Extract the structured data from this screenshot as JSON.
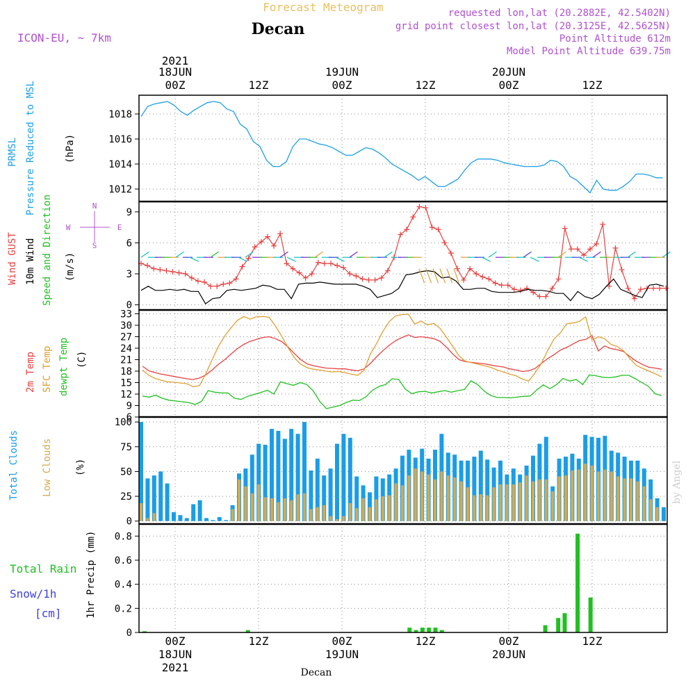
{
  "header": {
    "title": "Forecast Meteogram",
    "location": "Decan",
    "model": "ICON-EU, ~ 7km",
    "requested": "requested lon,lat (20.2882E, 42.5402N)",
    "gridpoint": "grid point closest lon,lat (20.3125E, 42.5625N)",
    "point_alt": "Point Altitude 612m",
    "model_alt": "Model Point Altitude 639.75m",
    "watermark": "by Angel",
    "footer_label": "Decan"
  },
  "time_axis": {
    "top_year": "2021",
    "bottom_year": "2021",
    "day_labels": [
      "18JUN",
      "19JUN",
      "20JUN"
    ],
    "tick_labels": [
      "00Z",
      "12Z",
      "00Z",
      "12Z",
      "00Z",
      "12Z"
    ]
  },
  "chart_data": [
    {
      "type": "line",
      "ylabel_lines": [
        "PRMSL",
        "Pressure Reduced to MSL"
      ],
      "unit": "(hPa)",
      "ylim": [
        1011,
        1019.5
      ],
      "yticks": [
        1012,
        1014,
        1016,
        1018
      ],
      "series": [
        {
          "values": [
            1017.8,
            1018.6,
            1018.8,
            1018.9,
            1019.0,
            1018.7,
            1018.2,
            1017.9,
            1018.3,
            1018.6,
            1018.9,
            1019.0,
            1018.9,
            1018.4,
            1018.2,
            1017.2,
            1016.8,
            1015.8,
            1015.4,
            1014.3,
            1013.8,
            1013.8,
            1014.2,
            1015.4,
            1016.0,
            1016.0,
            1015.8,
            1015.6,
            1015.5,
            1015.3,
            1015.0,
            1014.7,
            1014.7,
            1015.0,
            1015.3,
            1015.2,
            1014.9,
            1014.5,
            1014.0,
            1013.7,
            1013.4,
            1013.1,
            1012.7,
            1013.0,
            1012.6,
            1012.2,
            1012.2,
            1012.5,
            1012.8,
            1013.5,
            1014.1,
            1014.4,
            1014.4,
            1014.4,
            1014.3,
            1014.1,
            1014.0,
            1013.9,
            1013.8,
            1013.8,
            1013.8,
            1013.9,
            1014.3,
            1014.2,
            1013.8,
            1013.0,
            1012.7,
            1012.2,
            1011.7,
            1012.7,
            1012.0,
            1011.9,
            1011.9,
            1012.2,
            1012.6,
            1013.2,
            1013.2,
            1013.1,
            1012.9,
            1012.9
          ]
        }
      ]
    },
    {
      "type": "line",
      "ylabel_lines": [
        "Wind GUST",
        "10m Wind",
        "Speed and Direction"
      ],
      "unit": "(m/s)",
      "compass": {
        "n": "N",
        "s": "S",
        "w": "W",
        "e": "E"
      },
      "ylim": [
        -0.5,
        10
      ],
      "yticks": [
        0,
        3,
        6,
        9
      ],
      "series": [
        {
          "name": "Wind GUST",
          "values": [
            4.0,
            3.8,
            3.5,
            3.4,
            3.3,
            3.2,
            3.1,
            3.0,
            2.6,
            2.3,
            2.2,
            1.8,
            1.8,
            2.0,
            2.1,
            2.5,
            3.7,
            4.5,
            5.6,
            6.1,
            6.6,
            5.7,
            6.9,
            4.0,
            3.5,
            3.1,
            2.6,
            3.0,
            4.1,
            4.0,
            4.0,
            3.8,
            3.6,
            3.0,
            2.8,
            2.5,
            2.4,
            2.4,
            2.6,
            3.3,
            4.6,
            6.8,
            7.3,
            8.5,
            9.5,
            9.4,
            7.5,
            7.3,
            6.0,
            5.0,
            3.5,
            2.4,
            3.5,
            3.0,
            2.7,
            2.5,
            2.1,
            1.9,
            1.9,
            1.5,
            1.4,
            1.6,
            1.2,
            0.8,
            0.8,
            1.6,
            2.5,
            7.4,
            5.4,
            5.4,
            4.8,
            5.4,
            5.9,
            7.8,
            1.8,
            5.5,
            3.4,
            1.6,
            0.6,
            1.5,
            1.6,
            1.6,
            1.6,
            1.6
          ]
        },
        {
          "name": "10m Wind",
          "values": [
            1.4,
            1.8,
            1.4,
            1.4,
            1.5,
            1.4,
            1.5,
            1.3,
            1.3,
            0.1,
            0.6,
            0.7,
            1.4,
            1.5,
            1.4,
            1.5,
            1.6,
            1.9,
            1.8,
            1.5,
            1.5,
            0.6,
            2.0,
            2.1,
            2.1,
            2.2,
            2.1,
            2.0,
            2.0,
            2.0,
            2.0,
            1.8,
            1.5,
            0.7,
            0.9,
            1.1,
            1.6,
            2.9,
            3.0,
            3.2,
            3.3,
            3.2,
            2.6,
            2.7,
            2.3,
            1.5,
            1.5,
            1.6,
            1.6,
            1.3,
            1.2,
            1.2,
            1.2,
            1.3,
            1.5,
            1.4,
            1.4,
            1.3,
            1.1,
            1.1,
            0.4,
            1.3,
            0.8,
            0.6,
            1.0,
            1.8,
            2.5,
            1.5,
            1.2,
            0.9,
            0.7,
            1.9,
            2.0,
            1.8
          ]
        }
      ]
    },
    {
      "type": "line",
      "ylabel_lines": [
        "2m Temp",
        "SFC Temp",
        "dewpt Temp"
      ],
      "unit": "(C)",
      "ylim": [
        6,
        34
      ],
      "yticks": [
        6,
        9,
        12,
        15,
        18,
        21,
        24,
        27,
        30,
        33
      ],
      "series": [
        {
          "name": "2m Temp",
          "values": [
            19.3,
            18.1,
            17.6,
            17.2,
            16.9,
            16.6,
            16.3,
            16.0,
            15.8,
            16.2,
            17.0,
            18.3,
            19.8,
            21.0,
            22.5,
            23.9,
            25.0,
            25.8,
            26.3,
            26.8,
            27.0,
            26.5,
            25.7,
            24.3,
            22.6,
            21.0,
            19.9,
            19.4,
            19.1,
            18.8,
            18.7,
            18.6,
            18.6,
            18.3,
            18.1,
            18.6,
            20.0,
            21.8,
            23.4,
            24.8,
            26.0,
            26.8,
            27.5,
            26.8,
            27.0,
            26.8,
            26.5,
            25.8,
            24.3,
            22.5,
            21.0,
            20.5,
            20.3,
            20.1,
            19.9,
            19.6,
            19.3,
            19.1,
            18.6,
            18.3,
            17.9,
            18.1,
            18.7,
            20.0,
            21.3,
            22.3,
            23.5,
            24.2,
            25.1,
            26.0,
            26.3,
            27.3,
            23.3,
            24.6,
            23.9,
            23.6,
            23.1,
            21.8,
            20.6,
            19.7,
            19.0,
            18.8,
            18.5
          ]
        },
        {
          "name": "SFC Temp",
          "values": [
            18.3,
            16.9,
            16.1,
            15.6,
            15.2,
            15.1,
            14.9,
            14.7,
            13.9,
            14.2,
            17.3,
            21.0,
            24.5,
            27.2,
            29.4,
            31.3,
            32.3,
            31.6,
            32.2,
            32.3,
            32.1,
            29.8,
            27.1,
            24.1,
            21.5,
            19.8,
            18.9,
            18.5,
            18.3,
            18.0,
            17.8,
            17.9,
            17.6,
            17.2,
            16.9,
            18.2,
            22.5,
            25.3,
            28.5,
            31.0,
            32.5,
            32.8,
            32.9,
            30.3,
            31.1,
            30.1,
            30.5,
            29.2,
            26.9,
            24.5,
            22.0,
            20.6,
            20.2,
            19.8,
            19.4,
            19.0,
            18.3,
            17.8,
            17.2,
            16.8,
            15.9,
            15.4,
            17.5,
            20.0,
            23.4,
            26.4,
            28.0,
            30.4,
            30.6,
            31.0,
            32.2,
            26.1,
            27.0,
            26.5,
            25.0,
            24.4,
            23.3,
            21.3,
            19.5,
            18.7,
            18.0,
            17.3,
            16.5
          ]
        },
        {
          "name": "dewpt Temp",
          "values": [
            11.5,
            11.2,
            11.7,
            10.9,
            10.4,
            10.2,
            10.0,
            9.8,
            9.3,
            10.1,
            12.9,
            12.5,
            12.3,
            12.3,
            10.9,
            10.6,
            11.4,
            11.9,
            12.4,
            13.0,
            12.0,
            15.2,
            14.7,
            14.3,
            15.0,
            14.5,
            12.8,
            10.0,
            8.2,
            8.6,
            9.0,
            9.8,
            10.4,
            10.3,
            11.3,
            13.0,
            14.0,
            14.5,
            16.0,
            15.8,
            13.3,
            12.1,
            12.6,
            12.7,
            12.3,
            12.6,
            12.9,
            12.5,
            12.9,
            13.2,
            15.5,
            14.5,
            12.8,
            11.6,
            11.1,
            11.1,
            11.0,
            11.2,
            11.4,
            11.5,
            13.1,
            14.4,
            13.4,
            14.5,
            16.1,
            15.4,
            15.8,
            14.5,
            17.0,
            16.8,
            16.4,
            16.3,
            16.5,
            16.9,
            16.9,
            16.0,
            15.0,
            14.0,
            12.1,
            11.6
          ]
        }
      ]
    },
    {
      "type": "bar",
      "ylabel_lines": [
        "Total Clouds",
        "Low Clouds"
      ],
      "unit": "(%)",
      "ylim": [
        -3,
        105
      ],
      "yticks": [
        0,
        25,
        50,
        75,
        100
      ],
      "series": [
        {
          "name": "Total Clouds",
          "values": [
            100,
            43,
            46,
            50,
            38,
            9,
            6,
            3,
            17,
            21,
            3,
            1,
            4,
            1,
            16,
            48,
            53,
            67,
            78,
            77,
            93,
            91,
            83,
            93,
            88,
            100,
            51,
            63,
            46,
            53,
            78,
            88,
            84,
            45,
            36,
            29,
            45,
            43,
            47,
            53,
            66,
            72,
            64,
            73,
            63,
            72,
            88,
            69,
            67,
            61,
            61,
            65,
            71,
            62,
            54,
            61,
            47,
            53,
            47,
            56,
            66,
            78,
            85,
            35,
            63,
            65,
            68,
            63,
            87,
            85,
            84,
            86,
            71,
            69,
            65,
            61,
            61,
            53,
            42,
            23,
            14
          ]
        },
        {
          "name": "Low Clouds",
          "values": [
            18,
            3,
            8,
            0,
            0,
            0,
            0,
            0,
            0,
            0,
            0,
            0,
            0,
            0,
            12,
            42,
            35,
            28,
            37,
            24,
            23,
            19,
            23,
            21,
            27,
            28,
            12,
            14,
            16,
            5,
            2,
            5,
            18,
            13,
            23,
            14,
            22,
            25,
            26,
            38,
            36,
            46,
            53,
            50,
            47,
            42,
            50,
            46,
            44,
            40,
            34,
            26,
            27,
            26,
            34,
            37,
            37,
            37,
            39,
            46,
            40,
            42,
            42,
            30,
            45,
            46,
            51,
            52,
            58,
            56,
            50,
            52,
            50,
            45,
            43,
            43,
            40,
            35,
            22,
            14
          ]
        }
      ]
    },
    {
      "type": "bar",
      "ylabel": "1hr Precip (mm)",
      "left_labels": {
        "total": "Total  Rain",
        "snow": "Snow/1h",
        "snow_unit": "[cm]"
      },
      "ylim": [
        0,
        0.9
      ],
      "yticks": [
        0,
        0.2,
        0.4,
        0.6,
        0.8
      ],
      "series": [
        {
          "name": "Total Rain",
          "values": [
            0.01,
            0,
            0,
            0,
            0,
            0,
            0,
            0,
            0,
            0,
            0,
            0,
            0,
            0,
            0,
            0,
            0.02,
            0,
            0,
            0,
            0,
            0,
            0,
            0,
            0,
            0,
            0,
            0,
            0,
            0,
            0,
            0,
            0,
            0,
            0,
            0,
            0,
            0,
            0,
            0,
            0,
            0.04,
            0.02,
            0.04,
            0.04,
            0.04,
            0.02,
            0,
            0,
            0,
            0,
            0,
            0,
            0,
            0,
            0,
            0,
            0,
            0,
            0,
            0,
            0,
            0.06,
            0,
            0.12,
            0.16,
            0,
            0.82,
            0,
            0.29,
            0,
            0,
            0,
            0,
            0,
            0,
            0,
            0
          ]
        }
      ]
    }
  ],
  "colors": {
    "pressure": "#1ea0e6",
    "gust": "#e84040",
    "wind": "#000000",
    "temp2m": "#e84040",
    "sfc": "#e0a030",
    "dewpt": "#20c020",
    "total_clouds": "#1a9de8",
    "low_clouds": "#d4aa50",
    "rain": "#20c020",
    "snow": "#4040e0",
    "title": "#e8c060",
    "info": "#b050d0"
  }
}
